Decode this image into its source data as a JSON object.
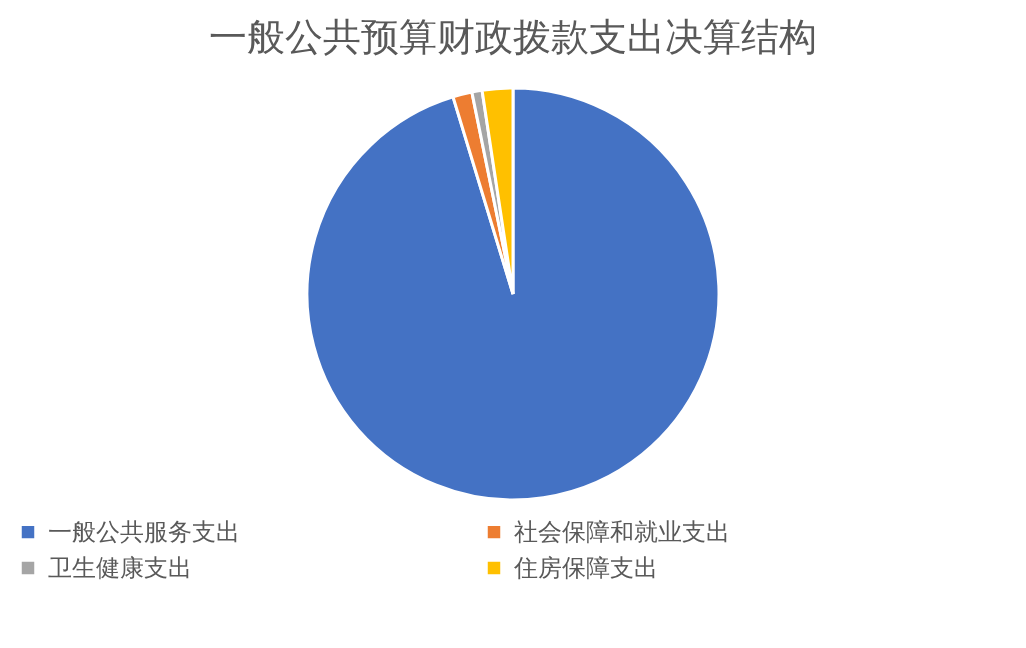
{
  "chart_data": {
    "type": "pie",
    "title": "一般公共预算财政拨款支出决算结构",
    "categories": [
      "一般公共服务支出",
      "社会保障和就业支出",
      "卫生健康支出",
      "住房保障支出"
    ],
    "values": [
      95.3,
      1.5,
      0.8,
      2.4
    ],
    "colors": [
      "#4472c4",
      "#ed7d31",
      "#a5a5a5",
      "#ffc000"
    ],
    "legend": "bottom"
  }
}
